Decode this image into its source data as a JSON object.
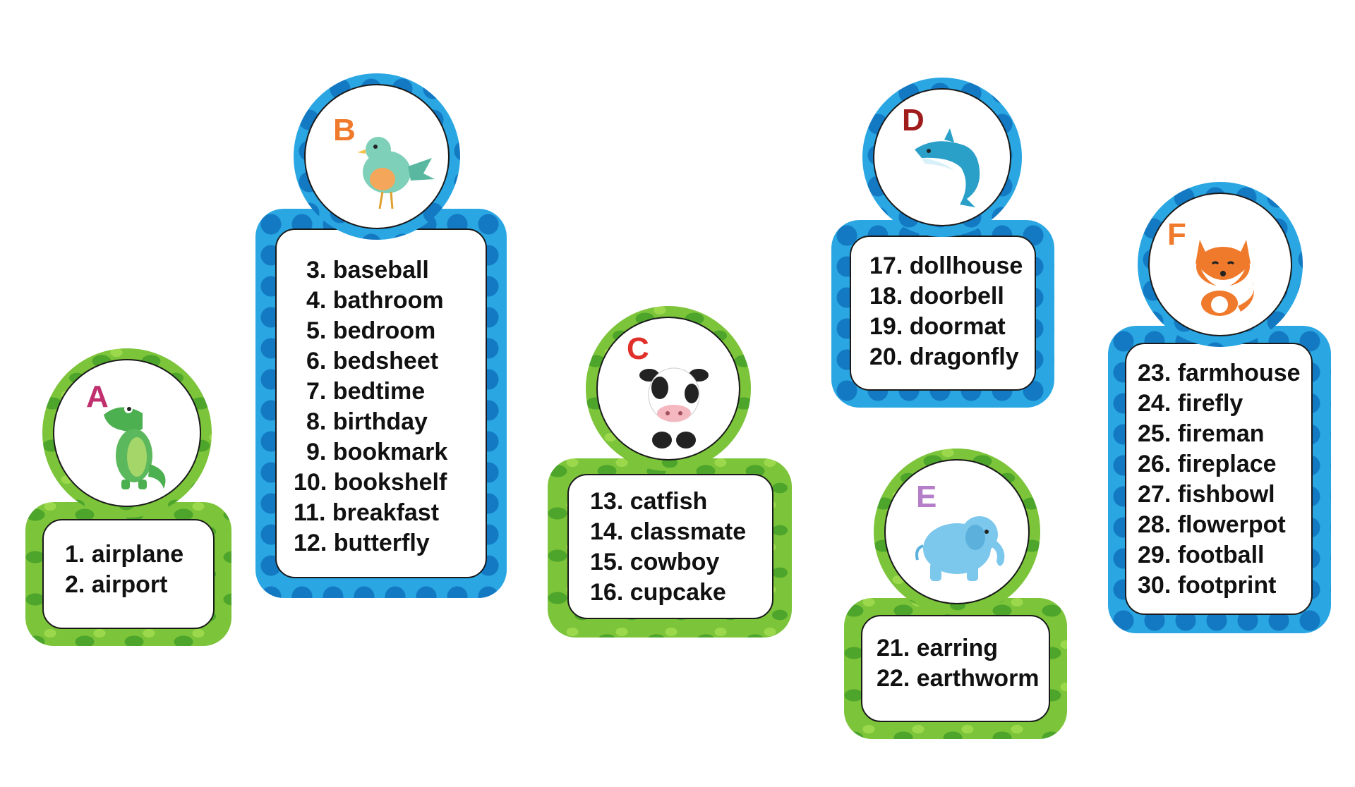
{
  "cards": [
    {
      "letter": "A",
      "letter_color": "#c0306e",
      "theme": "green",
      "animal": "crocodile-icon",
      "words": [
        "1. airplane",
        "2. airport"
      ]
    },
    {
      "letter": "B",
      "letter_color": "#f07a2b",
      "theme": "blue",
      "animal": "bird-icon",
      "words": [
        "3. baseball",
        "4. bathroom",
        "5. bedroom",
        "6. bedsheet",
        "7. bedtime",
        "8. birthday",
        "9. bookmark",
        "10. bookshelf",
        "11. breakfast",
        "12. butterfly"
      ]
    },
    {
      "letter": "C",
      "letter_color": "#e0302a",
      "theme": "green",
      "animal": "cow-icon",
      "words": [
        "13. catfish",
        "14. classmate",
        "15. cowboy",
        "16. cupcake"
      ]
    },
    {
      "letter": "D",
      "letter_color": "#a01c1c",
      "theme": "blue",
      "animal": "dolphin-icon",
      "words": [
        "17. dollhouse",
        "18. doorbell",
        "19. doormat",
        "20. dragonfly"
      ]
    },
    {
      "letter": "E",
      "letter_color": "#b57ec8",
      "theme": "green",
      "animal": "elephant-icon",
      "words": [
        "21. earring",
        "22. earthworm"
      ]
    },
    {
      "letter": "F",
      "letter_color": "#f07a2b",
      "theme": "blue",
      "animal": "fox-icon",
      "words": [
        "23. farmhouse",
        "24. firefly",
        "25. fireman",
        "26. fireplace",
        "27. fishbowl",
        "28. flowerpot",
        "29. football",
        "30. footprint"
      ]
    }
  ]
}
